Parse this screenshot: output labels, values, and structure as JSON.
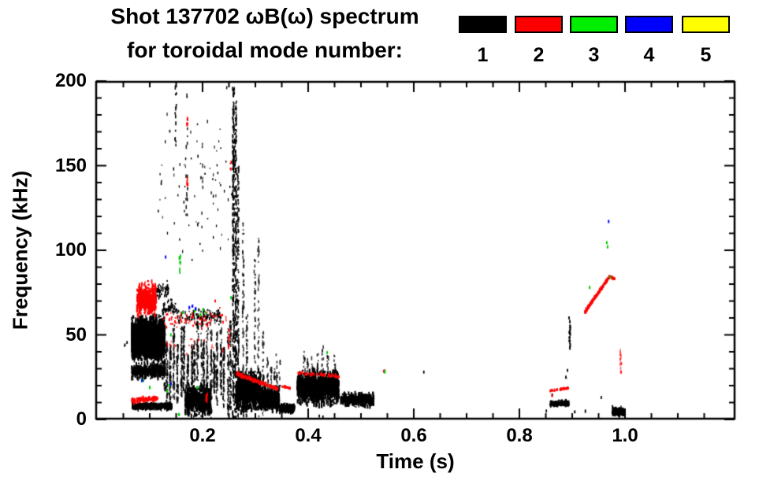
{
  "header": {
    "title_line1": "Shot 137702 ωB(ω) spectrum",
    "title_line2": "for toroidal mode number:"
  },
  "legend": {
    "items": [
      {
        "label": "1",
        "color": "#000000"
      },
      {
        "label": "2",
        "color": "#ff0000"
      },
      {
        "label": "3",
        "color": "#00ee00"
      },
      {
        "label": "4",
        "color": "#0000ff"
      },
      {
        "label": "5",
        "color": "#ffff00"
      }
    ]
  },
  "chart_data": {
    "type": "scatter",
    "title": "Shot 137702 ωB(ω) spectrum for toroidal mode number: 1 2 3 4 5",
    "xlabel": "Time (s)",
    "ylabel": "Frequency (kHz)",
    "xlim": [
      0.0,
      1.21
    ],
    "ylim": [
      0,
      200
    ],
    "grid": false,
    "legend_position": "top-right",
    "x_ticks": [
      {
        "value": 0.2,
        "label": "0.2"
      },
      {
        "value": 0.4,
        "label": "0.4"
      },
      {
        "value": 0.6,
        "label": "0.6"
      },
      {
        "value": 0.8,
        "label": "0.8"
      },
      {
        "value": 1.0,
        "label": "1.0"
      }
    ],
    "x_minor_step": 0.05,
    "y_ticks": [
      {
        "value": 0,
        "label": "0"
      },
      {
        "value": 50,
        "label": "50"
      },
      {
        "value": 100,
        "label": "100"
      },
      {
        "value": 150,
        "label": "150"
      },
      {
        "value": 200,
        "label": "200"
      }
    ],
    "y_minor_step": 10,
    "series_colors": {
      "1": "#000000",
      "2": "#ff0000",
      "3": "#00cc00",
      "4": "#0000ff",
      "5": "#ffff00"
    },
    "features": [
      {
        "mode": 1,
        "type": "blob",
        "t": [
          0.066,
          0.128
        ],
        "f": [
          34,
          61
        ],
        "n": 2400,
        "size": 2.2,
        "elong": 6,
        "note": "dense n=1 core activity 35-60 kHz"
      },
      {
        "mode": 1,
        "type": "blob",
        "t": [
          0.113,
          0.136
        ],
        "f": [
          70,
          82
        ],
        "n": 55,
        "size": 1.5,
        "elong": 3,
        "note": "sprinkle above core"
      },
      {
        "mode": 1,
        "type": "blob",
        "t": [
          0.124,
          0.152
        ],
        "f": [
          60,
          72
        ],
        "n": 55,
        "size": 1.5,
        "elong": 3,
        "note": "dots 60-72 kHz"
      },
      {
        "mode": 1,
        "type": "blob",
        "t": [
          0.066,
          0.128
        ],
        "f": [
          23,
          34
        ],
        "n": 380,
        "size": 1.8,
        "elong": 5,
        "note": "below-core scatter"
      },
      {
        "mode": 1,
        "type": "blob",
        "t": [
          0.066,
          0.142
        ],
        "f": [
          5.5,
          10
        ],
        "n": 620,
        "size": 1.6,
        "elong": 3,
        "note": "low-frequency wavy line ~8 kHz"
      },
      {
        "mode": 1,
        "type": "streaks",
        "t": [
          0.125,
          0.257
        ],
        "f": [
          1,
          68
        ],
        "count": 21,
        "n": 52,
        "alpha": 0.85,
        "note": "forest of vertical bursts 0-68 kHz"
      },
      {
        "mode": 1,
        "type": "blob",
        "t": [
          0.15,
          0.235
        ],
        "f": [
          55,
          66
        ],
        "n": 110,
        "size": 1.6,
        "elong": 3,
        "note": "burst tops near 60 kHz"
      },
      {
        "mode": 1,
        "type": "blob",
        "t": [
          0.167,
          0.216
        ],
        "f": [
          0.5,
          22
        ],
        "n": 650,
        "size": 1.8,
        "elong": 4,
        "note": "dense low band under bursts"
      },
      {
        "mode": 1,
        "type": "blob",
        "t": [
          0.115,
          0.262
        ],
        "f": [
          85,
          200
        ],
        "n": 78,
        "size": 1.3,
        "elong": 3,
        "note": "sparse sprinkle 85-200 kHz"
      },
      {
        "mode": 1,
        "type": "vline",
        "t": 0.149,
        "f": [
          160,
          199
        ],
        "n": 13,
        "w": 2,
        "note": "burst to 199 kHz"
      },
      {
        "mode": 1,
        "type": "vline",
        "t": 0.17,
        "f": [
          120,
          192
        ],
        "n": 15,
        "w": 2,
        "alpha": 0.9
      },
      {
        "mode": 1,
        "type": "vline",
        "t": 0.2,
        "f": [
          95,
          168
        ],
        "n": 9,
        "w": 2,
        "alpha": 0.8
      },
      {
        "mode": 1,
        "type": "vline",
        "t": 0.2585,
        "f": [
          0,
          197
        ],
        "n": 260,
        "w": 2.5,
        "note": "large broadband spike t=0.26"
      },
      {
        "mode": 1,
        "type": "vline",
        "t": 0.263,
        "f": [
          0,
          188
        ],
        "n": 200,
        "w": 2
      },
      {
        "mode": 1,
        "type": "vline",
        "t": 0.2675,
        "f": [
          0,
          150
        ],
        "n": 120,
        "w": 2,
        "alpha": 0.9
      },
      {
        "mode": 1,
        "type": "vline",
        "t": 0.277,
        "f": [
          1,
          116
        ],
        "n": 70,
        "w": 2,
        "alpha": 0.8
      },
      {
        "mode": 1,
        "type": "vline",
        "t": 0.284,
        "f": [
          1,
          62
        ],
        "n": 55,
        "w": 2,
        "alpha": 0.8
      },
      {
        "mode": 1,
        "type": "vline",
        "t": 0.299,
        "f": [
          1,
          96
        ],
        "n": 50,
        "w": 2,
        "alpha": 0.8
      },
      {
        "mode": 1,
        "type": "vline",
        "t": 0.306,
        "f": [
          1,
          108
        ],
        "n": 45,
        "w": 2,
        "alpha": 0.75
      },
      {
        "mode": 1,
        "type": "vline",
        "t": 0.315,
        "f": [
          1,
          58
        ],
        "n": 38,
        "w": 2,
        "alpha": 0.75
      },
      {
        "mode": 1,
        "type": "blob",
        "t": [
          0.264,
          0.31
        ],
        "f": [
          4,
          30
        ],
        "n": 850,
        "size": 2,
        "elong": 5,
        "note": "descending band after spike"
      },
      {
        "mode": 1,
        "type": "blob",
        "t": [
          0.31,
          0.345
        ],
        "f": [
          4,
          20
        ],
        "n": 500,
        "size": 2,
        "elong": 5
      },
      {
        "mode": 1,
        "type": "streaks",
        "t": [
          0.32,
          0.35
        ],
        "f": [
          14,
          40
        ],
        "count": 5,
        "n": 12,
        "alpha": 0.8
      },
      {
        "mode": 1,
        "type": "blob",
        "t": [
          0.345,
          0.374
        ],
        "f": [
          3.5,
          9.5
        ],
        "n": 250,
        "size": 1.8,
        "elong": 3,
        "note": "small low blob"
      },
      {
        "mode": 1,
        "type": "blob",
        "t": [
          0.379,
          0.458
        ],
        "f": [
          8,
          30
        ],
        "n": 950,
        "size": 2,
        "elong": 6,
        "note": "mid blob 10-30 kHz"
      },
      {
        "mode": 1,
        "type": "streaks",
        "t": [
          0.385,
          0.455
        ],
        "f": [
          26,
          44
        ],
        "count": 7,
        "n": 9,
        "alpha": 0.8
      },
      {
        "mode": 1,
        "type": "blob",
        "t": [
          0.462,
          0.524
        ],
        "f": [
          7,
          16
        ],
        "n": 400,
        "size": 1.8,
        "elong": 4,
        "note": "tapering blob to t=0.52"
      },
      {
        "mode": 1,
        "type": "dots",
        "pts": [
          [
            0.421,
            2
          ],
          [
            0.428,
            1.5
          ],
          [
            0.519,
            14
          ],
          [
            0.619,
            28
          ],
          [
            0.053,
            44
          ],
          [
            0.057,
            45.5
          ]
        ],
        "size": 1.8
      },
      {
        "mode": 1,
        "type": "blob",
        "t": [
          0.858,
          0.894
        ],
        "f": [
          7.5,
          11.5
        ],
        "n": 150,
        "size": 1.8,
        "elong": 3,
        "note": "cluster ~9 kHz at t=0.87"
      },
      {
        "mode": 1,
        "type": "vline",
        "t": 0.8955,
        "f": [
          42,
          55
        ],
        "n": 24,
        "w": 2,
        "note": "burst to 55 kHz at t=0.9"
      },
      {
        "mode": 1,
        "type": "dots",
        "pts": [
          [
            0.8955,
            58
          ],
          [
            0.894,
            60
          ],
          [
            0.891,
            29
          ],
          [
            0.888,
            25
          ],
          [
            0.862,
            14.5
          ],
          [
            0.955,
            13
          ],
          [
            0.851,
            5
          ],
          [
            0.925,
            5
          ],
          [
            0.905,
            4.5
          ]
        ],
        "size": 1.8
      },
      {
        "mode": 1,
        "type": "blob",
        "t": [
          0.976,
          0.998
        ],
        "f": [
          1.5,
          7.5
        ],
        "n": 185,
        "size": 2,
        "elong": 3,
        "note": "low cluster at t=0.99"
      },
      {
        "mode": 2,
        "type": "blob",
        "t": [
          0.076,
          0.112
        ],
        "f": [
          60,
          82
        ],
        "n": 420,
        "size": 2,
        "elong": 4,
        "note": "n=2 cluster 60-82 kHz"
      },
      {
        "mode": 2,
        "type": "line",
        "p0": [
          0.066,
          11
        ],
        "p1": [
          0.115,
          12.5
        ],
        "spread": 2.2,
        "n": 130,
        "size": 1.8,
        "note": "n=2 low line ~12 kHz"
      },
      {
        "mode": 2,
        "type": "blob",
        "t": [
          0.125,
          0.245
        ],
        "f": [
          52,
          67
        ],
        "n": 75,
        "size": 1.6,
        "elong": 2
      },
      {
        "mode": 2,
        "type": "blob",
        "t": [
          0.13,
          0.24
        ],
        "f": [
          38,
          51
        ],
        "n": 22,
        "size": 1.4,
        "elong": 2
      },
      {
        "mode": 2,
        "type": "vline",
        "t": 0.1705,
        "f": [
          173,
          178
        ],
        "n": 7,
        "w": 2,
        "note": "red dash ~176 kHz"
      },
      {
        "mode": 2,
        "type": "vline",
        "t": 0.1715,
        "f": [
          137,
          142
        ],
        "n": 6,
        "w": 2,
        "note": "red dash ~140 kHz"
      },
      {
        "mode": 2,
        "type": "dots",
        "pts": [
          [
            0.254,
            152
          ],
          [
            0.2535,
            148
          ],
          [
            0.224,
            70
          ]
        ],
        "size": 1.8
      },
      {
        "mode": 2,
        "type": "vline",
        "t": 0.2505,
        "f": [
          42,
          54
        ],
        "n": 12,
        "w": 2
      },
      {
        "mode": 2,
        "type": "vline",
        "t": 0.208,
        "f": [
          10,
          15
        ],
        "n": 8,
        "w": 2
      },
      {
        "mode": 2,
        "type": "line",
        "p0": [
          0.264,
          27
        ],
        "p1": [
          0.343,
          18
        ],
        "spread": 1.8,
        "n": 120,
        "size": 2,
        "note": "descending red line 27→18 kHz"
      },
      {
        "mode": 2,
        "type": "line",
        "p0": [
          0.351,
          19.5
        ],
        "p1": [
          0.366,
          18.5
        ],
        "spread": 0.8,
        "n": 18,
        "size": 1.8
      },
      {
        "mode": 2,
        "type": "line",
        "p0": [
          0.379,
          27.5
        ],
        "p1": [
          0.458,
          25.5
        ],
        "spread": 1.2,
        "n": 60,
        "size": 1.8,
        "note": "red row atop mid blob"
      },
      {
        "mode": 2,
        "type": "dots",
        "pts": [
          [
            0.543,
            28.5
          ],
          [
            0.207,
            12
          ],
          [
            0.209,
            15
          ],
          [
            0.862,
            14
          ]
        ],
        "size": 1.8
      },
      {
        "mode": 2,
        "type": "line",
        "p0": [
          0.858,
          17
        ],
        "p1": [
          0.893,
          18.5
        ],
        "spread": 0.9,
        "n": 40,
        "size": 1.8,
        "note": "red segment ~18 kHz at t=0.87"
      },
      {
        "mode": 2,
        "type": "line",
        "p0": [
          0.924,
          63.5
        ],
        "p1": [
          0.971,
          84.5
        ],
        "spread": 1.1,
        "n": 150,
        "size": 2.2,
        "note": "rising red chirp 64→85 kHz"
      },
      {
        "mode": 2,
        "type": "line",
        "p0": [
          0.971,
          84.5
        ],
        "p1": [
          0.981,
          83
        ],
        "spread": 0.7,
        "n": 20,
        "size": 2
      },
      {
        "mode": 2,
        "type": "vline",
        "t": 0.992,
        "f": [
          27,
          42
        ],
        "n": 20,
        "w": 2,
        "alpha": 0.6,
        "note": "faint red streak 27-42 kHz"
      },
      {
        "mode": 3,
        "type": "vline",
        "t": 0.157,
        "f": [
          87,
          98
        ],
        "n": 9,
        "w": 2,
        "note": "green streak 87-98 kHz"
      },
      {
        "mode": 3,
        "type": "dots",
        "pts": [
          [
            0.162,
            63
          ],
          [
            0.185,
            64
          ],
          [
            0.196,
            62
          ],
          [
            0.201,
            65
          ],
          [
            0.206,
            63
          ],
          [
            0.14,
            50
          ],
          [
            0.088,
            23
          ],
          [
            0.1,
            19
          ],
          [
            0.133,
            16.5
          ],
          [
            0.137,
            20
          ],
          [
            0.155,
            3
          ],
          [
            0.254,
            72
          ],
          [
            0.19,
            19
          ]
        ],
        "size": 2
      },
      {
        "mode": 3,
        "type": "dots",
        "pts": [
          [
            0.436,
            39.5
          ],
          [
            0.545,
            28
          ],
          [
            0.933,
            78
          ],
          [
            0.9655,
            104.5
          ],
          [
            0.967,
            102
          ],
          [
            0.972,
            84
          ]
        ],
        "size": 2
      },
      {
        "mode": 4,
        "type": "dots",
        "pts": [
          [
            0.175,
            66
          ],
          [
            0.181,
            67
          ],
          [
            0.187,
            65.5
          ],
          [
            0.13,
            96
          ],
          [
            0.14,
            21
          ],
          [
            0.085,
            23
          ],
          [
            0.969,
            117
          ]
        ],
        "size": 2
      }
    ]
  }
}
